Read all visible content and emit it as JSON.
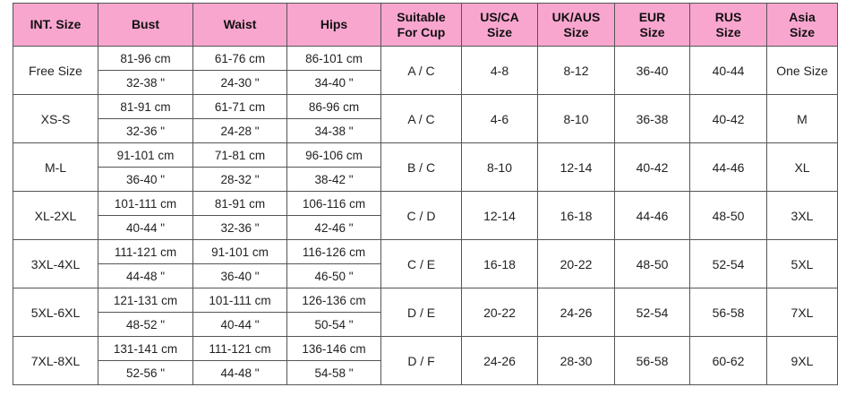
{
  "table": {
    "header": [
      "INT. Size",
      "Bust",
      "Waist",
      "Hips",
      "Suitable\nFor Cup",
      "US/CA\nSize",
      "UK/AUS\nSize",
      "EUR\nSize",
      "RUS\nSize",
      "Asia\nSize"
    ],
    "rows": [
      [
        "Free Size",
        "81-96 cm",
        "32-38 \"",
        "61-76 cm",
        "24-30 \"",
        "86-101 cm",
        "34-40 \"",
        "A / C",
        "4-8",
        "8-12",
        "36-40",
        "40-44",
        "One Size"
      ],
      [
        "XS-S",
        "81-91 cm",
        "32-36 \"",
        "61-71 cm",
        "24-28 \"",
        "86-96 cm",
        "34-38 \"",
        "A / C",
        "4-6",
        "8-10",
        "36-38",
        "40-42",
        "M"
      ],
      [
        "M-L",
        "91-101 cm",
        "36-40 \"",
        "71-81 cm",
        "28-32 \"",
        "96-106 cm",
        "38-42 \"",
        "B / C",
        "8-10",
        "12-14",
        "40-42",
        "44-46",
        "XL"
      ],
      [
        "XL-2XL",
        "101-111 cm",
        "40-44 \"",
        "81-91 cm",
        "32-36 \"",
        "106-116 cm",
        "42-46 \"",
        "C / D",
        "12-14",
        "16-18",
        "44-46",
        "48-50",
        "3XL"
      ],
      [
        "3XL-4XL",
        "111-121 cm",
        "44-48 \"",
        "91-101 cm",
        "36-40 \"",
        "116-126 cm",
        "46-50 \"",
        "C / E",
        "16-18",
        "20-22",
        "48-50",
        "52-54",
        "5XL"
      ],
      [
        "5XL-6XL",
        "121-131 cm",
        "48-52 \"",
        "101-111 cm",
        "40-44 \"",
        "126-136 cm",
        "50-54 \"",
        "D / E",
        "20-22",
        "24-26",
        "52-54",
        "56-58",
        "7XL"
      ],
      [
        "7XL-8XL",
        "131-141 cm",
        "52-56 \"",
        "111-121 cm",
        "44-48 \"",
        "136-146 cm",
        "54-58 \"",
        "D / F",
        "24-26",
        "28-30",
        "56-58",
        "60-62",
        "9XL"
      ]
    ]
  }
}
